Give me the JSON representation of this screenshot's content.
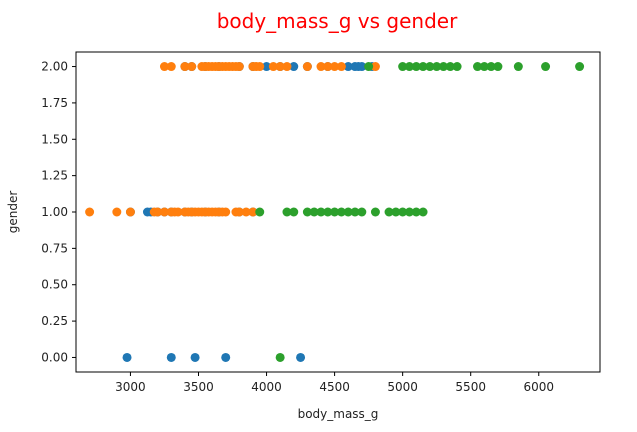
{
  "chart_data": {
    "type": "scatter",
    "title": "body_mass_g vs gender",
    "xlabel": "body_mass_g",
    "ylabel": "gender",
    "xlim": [
      2600,
      6450
    ],
    "ylim": [
      -0.1,
      2.1
    ],
    "x_ticks": [
      3000,
      3500,
      4000,
      4500,
      5000,
      5500,
      6000
    ],
    "y_ticks": [
      0.0,
      0.25,
      0.5,
      0.75,
      1.0,
      1.25,
      1.5,
      1.75,
      2.0
    ],
    "grid": false,
    "legend": "none",
    "series": [
      {
        "color": "#1f77b4",
        "points": [
          [
            2975,
            0
          ],
          [
            3300,
            0
          ],
          [
            3475,
            0
          ],
          [
            3700,
            0
          ],
          [
            4250,
            0
          ],
          [
            3000,
            1
          ],
          [
            3125,
            1
          ],
          [
            3150,
            1
          ],
          [
            3200,
            1
          ],
          [
            3250,
            1
          ],
          [
            3300,
            1
          ],
          [
            3400,
            1
          ],
          [
            3450,
            1
          ],
          [
            3550,
            1
          ],
          [
            3650,
            1
          ],
          [
            3800,
            1
          ],
          [
            3900,
            1
          ],
          [
            3400,
            2
          ],
          [
            3450,
            2
          ],
          [
            3550,
            2
          ],
          [
            3650,
            2
          ],
          [
            3800,
            2
          ],
          [
            3900,
            2
          ],
          [
            4000,
            2
          ],
          [
            4100,
            2
          ],
          [
            4200,
            2
          ],
          [
            4300,
            2
          ],
          [
            4450,
            2
          ],
          [
            4600,
            2
          ],
          [
            4650,
            2
          ],
          [
            4675,
            2
          ],
          [
            4700,
            2
          ],
          [
            4775,
            2
          ]
        ]
      },
      {
        "color": "#ff7f0e",
        "points": [
          [
            2700,
            1
          ],
          [
            2900,
            1
          ],
          [
            3000,
            1
          ],
          [
            3175,
            1
          ],
          [
            3200,
            1
          ],
          [
            3250,
            1
          ],
          [
            3300,
            1
          ],
          [
            3325,
            1
          ],
          [
            3350,
            1
          ],
          [
            3400,
            1
          ],
          [
            3425,
            1
          ],
          [
            3450,
            1
          ],
          [
            3475,
            1
          ],
          [
            3500,
            1
          ],
          [
            3525,
            1
          ],
          [
            3550,
            1
          ],
          [
            3575,
            1
          ],
          [
            3600,
            1
          ],
          [
            3625,
            1
          ],
          [
            3650,
            1
          ],
          [
            3675,
            1
          ],
          [
            3700,
            1
          ],
          [
            3775,
            1
          ],
          [
            3800,
            1
          ],
          [
            3850,
            1
          ],
          [
            3900,
            1
          ],
          [
            3250,
            2
          ],
          [
            3300,
            2
          ],
          [
            3400,
            2
          ],
          [
            3450,
            2
          ],
          [
            3525,
            2
          ],
          [
            3550,
            2
          ],
          [
            3575,
            2
          ],
          [
            3600,
            2
          ],
          [
            3625,
            2
          ],
          [
            3650,
            2
          ],
          [
            3675,
            2
          ],
          [
            3700,
            2
          ],
          [
            3725,
            2
          ],
          [
            3750,
            2
          ],
          [
            3775,
            2
          ],
          [
            3800,
            2
          ],
          [
            3900,
            2
          ],
          [
            3925,
            2
          ],
          [
            3950,
            2
          ],
          [
            4050,
            2
          ],
          [
            4100,
            2
          ],
          [
            4150,
            2
          ],
          [
            4300,
            2
          ],
          [
            4400,
            2
          ],
          [
            4450,
            2
          ],
          [
            4500,
            2
          ],
          [
            4550,
            2
          ],
          [
            4800,
            2
          ]
        ]
      },
      {
        "color": "#2ca02c",
        "points": [
          [
            4100,
            0
          ],
          [
            3950,
            1
          ],
          [
            4150,
            1
          ],
          [
            4200,
            1
          ],
          [
            4300,
            1
          ],
          [
            4350,
            1
          ],
          [
            4400,
            1
          ],
          [
            4450,
            1
          ],
          [
            4500,
            1
          ],
          [
            4550,
            1
          ],
          [
            4600,
            1
          ],
          [
            4650,
            1
          ],
          [
            4700,
            1
          ],
          [
            4800,
            1
          ],
          [
            4900,
            1
          ],
          [
            4950,
            1
          ],
          [
            5000,
            1
          ],
          [
            5050,
            1
          ],
          [
            5100,
            1
          ],
          [
            5150,
            1
          ],
          [
            4750,
            2
          ],
          [
            5000,
            2
          ],
          [
            5050,
            2
          ],
          [
            5100,
            2
          ],
          [
            5150,
            2
          ],
          [
            5200,
            2
          ],
          [
            5250,
            2
          ],
          [
            5300,
            2
          ],
          [
            5350,
            2
          ],
          [
            5400,
            2
          ],
          [
            5550,
            2
          ],
          [
            5600,
            2
          ],
          [
            5650,
            2
          ],
          [
            5700,
            2
          ],
          [
            5850,
            2
          ],
          [
            6050,
            2
          ],
          [
            6300,
            2
          ]
        ]
      }
    ]
  }
}
